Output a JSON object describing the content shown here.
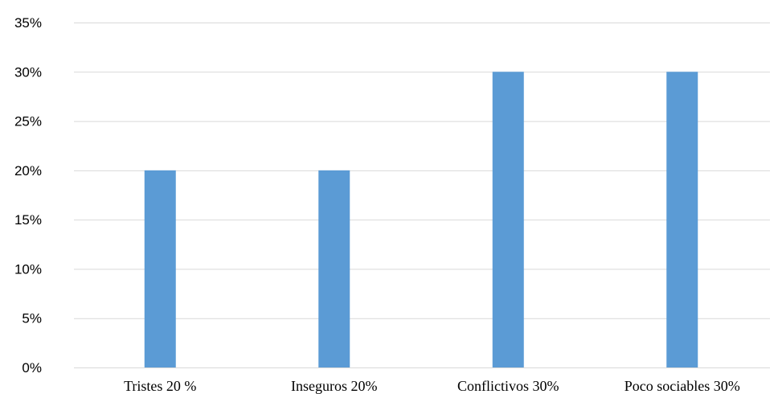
{
  "chart_data": {
    "type": "bar",
    "categories": [
      "Tristes 20 %",
      "Inseguros 20%",
      "Conflictivos 30%",
      "Poco sociables 30%"
    ],
    "values": [
      0.2,
      0.2,
      0.3,
      0.3
    ],
    "ylim": [
      0,
      0.35
    ],
    "yticks": [
      {
        "value": 0.0,
        "label": "0%"
      },
      {
        "value": 0.05,
        "label": "5%"
      },
      {
        "value": 0.1,
        "label": "10%"
      },
      {
        "value": 0.15,
        "label": "15%"
      },
      {
        "value": 0.2,
        "label": "20%"
      },
      {
        "value": 0.25,
        "label": "25%"
      },
      {
        "value": 0.3,
        "label": "30%"
      },
      {
        "value": 0.35,
        "label": "35%"
      }
    ],
    "grid": true,
    "bar_color": "#5b9bd5"
  }
}
